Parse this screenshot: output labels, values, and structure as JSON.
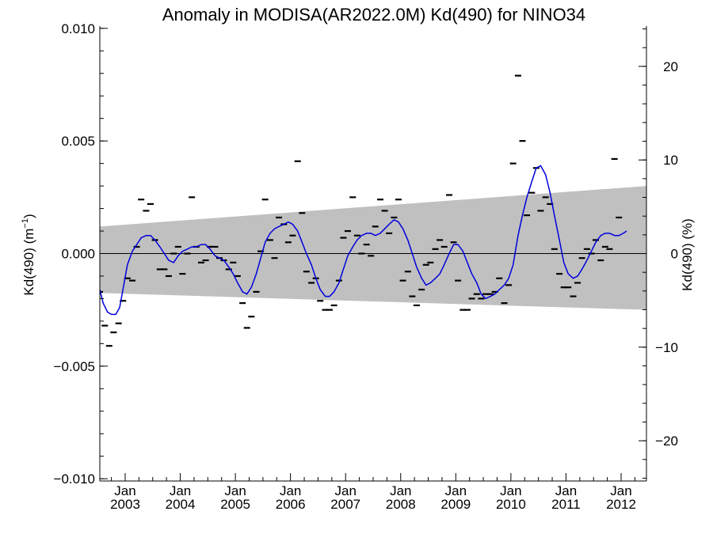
{
  "chart_data": {
    "type": "scatter",
    "title": "Anomaly in MODISA(AR2022.0M) Kd(490) for NINO34",
    "ylabel_left_main": "Kd(490) (m",
    "ylabel_left_sup": "−1",
    "ylabel_left_close": ")",
    "ylabel_right": "Kd(490) (%)",
    "ylim_left": [
      -0.0101,
      0.0101
    ],
    "ylim_right": [
      -24.3,
      24.3
    ],
    "xlim": [
      2002.54,
      2012.46
    ],
    "left_ticks": [
      {
        "value": 0.01,
        "label": "0.010"
      },
      {
        "value": 0.005,
        "label": "0.005"
      },
      {
        "value": 0.0,
        "label": "0.000"
      },
      {
        "value": -0.005,
        "label": "−0.005"
      },
      {
        "value": -0.01,
        "label": "−0.010"
      }
    ],
    "right_ticks": [
      {
        "value": 20,
        "label": "20"
      },
      {
        "value": 10,
        "label": "10"
      },
      {
        "value": 0,
        "label": "0"
      },
      {
        "value": -10,
        "label": "−10"
      },
      {
        "value": -20,
        "label": "−20"
      }
    ],
    "x_ticks": [
      {
        "value": 2003,
        "month": "Jan",
        "year": "2003"
      },
      {
        "value": 2004,
        "month": "Jan",
        "year": "2004"
      },
      {
        "value": 2005,
        "month": "Jan",
        "year": "2005"
      },
      {
        "value": 2006,
        "month": "Jan",
        "year": "2006"
      },
      {
        "value": 2007,
        "month": "Jan",
        "year": "2007"
      },
      {
        "value": 2008,
        "month": "Jan",
        "year": "2008"
      },
      {
        "value": 2009,
        "month": "Jan",
        "year": "2009"
      },
      {
        "value": 2010,
        "month": "Jan",
        "year": "2010"
      },
      {
        "value": 2011,
        "month": "Jan",
        "year": "2011"
      },
      {
        "value": 2012,
        "month": "Jan",
        "year": "2012"
      }
    ],
    "uncertainty_band": {
      "upper": [
        [
          2002.54,
          0.0012
        ],
        [
          2012.46,
          0.003
        ]
      ],
      "lower": [
        [
          2002.54,
          -0.00175
        ],
        [
          2012.46,
          -0.0025
        ]
      ]
    },
    "zero_line": 0,
    "monthly_anomalies": [
      [
        2002.54,
        -0.0017
      ],
      [
        2002.63,
        -0.0032
      ],
      [
        2002.71,
        -0.0041
      ],
      [
        2002.79,
        -0.0035
      ],
      [
        2002.88,
        -0.0031
      ],
      [
        2002.96,
        -0.0021
      ],
      [
        2003.04,
        -0.0011
      ],
      [
        2003.13,
        -0.0012
      ],
      [
        2003.21,
        0.0003
      ],
      [
        2003.29,
        0.0024
      ],
      [
        2003.38,
        0.0019
      ],
      [
        2003.46,
        0.0022
      ],
      [
        2003.54,
        0.0006
      ],
      [
        2003.63,
        -0.0007
      ],
      [
        2003.71,
        -0.0007
      ],
      [
        2003.79,
        -0.001
      ],
      [
        2003.88,
        0.0
      ],
      [
        2003.96,
        0.0003
      ],
      [
        2004.04,
        -0.0009
      ],
      [
        2004.13,
        0.0
      ],
      [
        2004.21,
        0.0025
      ],
      [
        2004.29,
        0.0003
      ],
      [
        2004.38,
        -0.0004
      ],
      [
        2004.46,
        -0.0003
      ],
      [
        2004.54,
        0.0003
      ],
      [
        2004.63,
        0.0003
      ],
      [
        2004.71,
        -0.0002
      ],
      [
        2004.79,
        -0.0003
      ],
      [
        2004.88,
        -0.0007
      ],
      [
        2004.96,
        -0.0004
      ],
      [
        2005.04,
        -0.001
      ],
      [
        2005.13,
        -0.0022
      ],
      [
        2005.21,
        -0.0033
      ],
      [
        2005.29,
        -0.0028
      ],
      [
        2005.38,
        -0.0017
      ],
      [
        2005.46,
        0.0001
      ],
      [
        2005.54,
        0.0024
      ],
      [
        2005.63,
        0.0006
      ],
      [
        2005.71,
        -0.0002
      ],
      [
        2005.79,
        0.0016
      ],
      [
        2005.88,
        0.0013
      ],
      [
        2005.96,
        0.0005
      ],
      [
        2006.04,
        0.0008
      ],
      [
        2006.13,
        0.0041
      ],
      [
        2006.21,
        0.0018
      ],
      [
        2006.29,
        -0.0008
      ],
      [
        2006.38,
        -0.0013
      ],
      [
        2006.46,
        -0.0011
      ],
      [
        2006.54,
        -0.0021
      ],
      [
        2006.63,
        -0.0025
      ],
      [
        2006.71,
        -0.0025
      ],
      [
        2006.79,
        -0.0023
      ],
      [
        2006.88,
        -0.0012
      ],
      [
        2006.96,
        0.0007
      ],
      [
        2007.04,
        0.001
      ],
      [
        2007.13,
        0.0025
      ],
      [
        2007.21,
        0.0008
      ],
      [
        2007.29,
        0.0
      ],
      [
        2007.38,
        0.0004
      ],
      [
        2007.46,
        -0.0001
      ],
      [
        2007.54,
        0.0012
      ],
      [
        2007.63,
        0.0024
      ],
      [
        2007.71,
        0.0019
      ],
      [
        2007.79,
        0.0009
      ],
      [
        2007.88,
        0.0016
      ],
      [
        2007.96,
        0.0024
      ],
      [
        2008.04,
        -0.0012
      ],
      [
        2008.13,
        -0.0008
      ],
      [
        2008.21,
        -0.0019
      ],
      [
        2008.29,
        -0.0023
      ],
      [
        2008.38,
        -0.0016
      ],
      [
        2008.46,
        -0.0005
      ],
      [
        2008.54,
        -0.0004
      ],
      [
        2008.63,
        0.0002
      ],
      [
        2008.71,
        0.0006
      ],
      [
        2008.79,
        0.0003
      ],
      [
        2008.88,
        0.0026
      ],
      [
        2008.96,
        0.0005
      ],
      [
        2009.04,
        -0.0012
      ],
      [
        2009.13,
        -0.0025
      ],
      [
        2009.21,
        -0.0025
      ],
      [
        2009.29,
        -0.002
      ],
      [
        2009.38,
        -0.0018
      ],
      [
        2009.46,
        -0.002
      ],
      [
        2009.54,
        -0.0018
      ],
      [
        2009.63,
        -0.0018
      ],
      [
        2009.71,
        -0.0017
      ],
      [
        2009.79,
        -0.0011
      ],
      [
        2009.88,
        -0.0022
      ],
      [
        2009.96,
        -0.0014
      ],
      [
        2010.04,
        0.004
      ],
      [
        2010.13,
        0.0079
      ],
      [
        2010.21,
        0.005
      ],
      [
        2010.29,
        0.0017
      ],
      [
        2010.38,
        0.0027
      ],
      [
        2010.46,
        0.0038
      ],
      [
        2010.54,
        0.0019
      ],
      [
        2010.63,
        0.0025
      ],
      [
        2010.71,
        0.0022
      ],
      [
        2010.79,
        0.0002
      ],
      [
        2010.88,
        -0.0009
      ],
      [
        2010.96,
        -0.0015
      ],
      [
        2011.04,
        -0.0015
      ],
      [
        2011.13,
        -0.0019
      ],
      [
        2011.21,
        -0.0013
      ],
      [
        2011.29,
        -0.0002
      ],
      [
        2011.38,
        0.0002
      ],
      [
        2011.46,
        0.0
      ],
      [
        2011.54,
        0.0006
      ],
      [
        2011.63,
        -0.0003
      ],
      [
        2011.71,
        0.0003
      ],
      [
        2011.79,
        0.0002
      ],
      [
        2011.88,
        0.0042
      ],
      [
        2011.96,
        0.0016
      ]
    ],
    "smoothed_anomaly": [
      [
        2002.54,
        -0.0016
      ],
      [
        2002.6,
        -0.0022
      ],
      [
        2002.68,
        -0.0026
      ],
      [
        2002.75,
        -0.0027
      ],
      [
        2002.83,
        -0.0027
      ],
      [
        2002.9,
        -0.0024
      ],
      [
        2002.96,
        -0.0016
      ],
      [
        2003.04,
        -0.0005
      ],
      [
        2003.13,
        0.0001
      ],
      [
        2003.21,
        0.0004
      ],
      [
        2003.29,
        0.0007
      ],
      [
        2003.38,
        0.0008
      ],
      [
        2003.46,
        0.0008
      ],
      [
        2003.54,
        0.0006
      ],
      [
        2003.63,
        0.0003
      ],
      [
        2003.71,
        0.0
      ],
      [
        2003.79,
        -0.0003
      ],
      [
        2003.88,
        -0.0004
      ],
      [
        2003.96,
        -0.0001
      ],
      [
        2004.04,
        0.0001
      ],
      [
        2004.13,
        0.0002
      ],
      [
        2004.21,
        0.0003
      ],
      [
        2004.29,
        0.0003
      ],
      [
        2004.38,
        0.0004
      ],
      [
        2004.46,
        0.0004
      ],
      [
        2004.54,
        0.0002
      ],
      [
        2004.63,
        -0.0001
      ],
      [
        2004.71,
        -0.0002
      ],
      [
        2004.79,
        -0.0003
      ],
      [
        2004.88,
        -0.0006
      ],
      [
        2004.96,
        -0.0009
      ],
      [
        2005.04,
        -0.0013
      ],
      [
        2005.13,
        -0.0017
      ],
      [
        2005.21,
        -0.0018
      ],
      [
        2005.29,
        -0.0015
      ],
      [
        2005.38,
        -0.0009
      ],
      [
        2005.46,
        -0.0002
      ],
      [
        2005.54,
        0.0005
      ],
      [
        2005.63,
        0.0009
      ],
      [
        2005.71,
        0.0011
      ],
      [
        2005.79,
        0.0012
      ],
      [
        2005.88,
        0.0013
      ],
      [
        2005.96,
        0.0014
      ],
      [
        2006.04,
        0.0013
      ],
      [
        2006.13,
        0.001
      ],
      [
        2006.21,
        0.0005
      ],
      [
        2006.29,
        0.0
      ],
      [
        2006.38,
        -0.0005
      ],
      [
        2006.46,
        -0.0011
      ],
      [
        2006.54,
        -0.0016
      ],
      [
        2006.63,
        -0.0019
      ],
      [
        2006.71,
        -0.0019
      ],
      [
        2006.79,
        -0.0017
      ],
      [
        2006.88,
        -0.0013
      ],
      [
        2006.96,
        -0.0007
      ],
      [
        2007.04,
        -0.0001
      ],
      [
        2007.13,
        0.0003
      ],
      [
        2007.21,
        0.0006
      ],
      [
        2007.29,
        0.0008
      ],
      [
        2007.38,
        0.0009
      ],
      [
        2007.46,
        0.0009
      ],
      [
        2007.54,
        0.0008
      ],
      [
        2007.63,
        0.0009
      ],
      [
        2007.71,
        0.0011
      ],
      [
        2007.79,
        0.0013
      ],
      [
        2007.88,
        0.0015
      ],
      [
        2007.96,
        0.0014
      ],
      [
        2008.04,
        0.0011
      ],
      [
        2008.13,
        0.0006
      ],
      [
        2008.21,
        0.0
      ],
      [
        2008.29,
        -0.0006
      ],
      [
        2008.38,
        -0.0011
      ],
      [
        2008.46,
        -0.0014
      ],
      [
        2008.54,
        -0.0013
      ],
      [
        2008.63,
        -0.0011
      ],
      [
        2008.71,
        -0.0009
      ],
      [
        2008.79,
        -0.0005
      ],
      [
        2008.88,
        0.0
      ],
      [
        2008.96,
        0.0004
      ],
      [
        2009.04,
        0.0004
      ],
      [
        2009.13,
        0.0001
      ],
      [
        2009.21,
        -0.0004
      ],
      [
        2009.29,
        -0.0009
      ],
      [
        2009.38,
        -0.0013
      ],
      [
        2009.46,
        -0.0018
      ],
      [
        2009.54,
        -0.002
      ],
      [
        2009.63,
        -0.0019
      ],
      [
        2009.71,
        -0.0018
      ],
      [
        2009.79,
        -0.0016
      ],
      [
        2009.88,
        -0.0014
      ],
      [
        2009.96,
        -0.0011
      ],
      [
        2010.04,
        -0.0005
      ],
      [
        2010.13,
        0.0008
      ],
      [
        2010.21,
        0.0017
      ],
      [
        2010.29,
        0.0025
      ],
      [
        2010.38,
        0.0032
      ],
      [
        2010.46,
        0.0038
      ],
      [
        2010.54,
        0.0039
      ],
      [
        2010.63,
        0.0035
      ],
      [
        2010.71,
        0.0027
      ],
      [
        2010.79,
        0.0017
      ],
      [
        2010.88,
        0.0006
      ],
      [
        2010.96,
        -0.0004
      ],
      [
        2011.04,
        -0.0009
      ],
      [
        2011.13,
        -0.0011
      ],
      [
        2011.21,
        -0.001
      ],
      [
        2011.29,
        -0.0007
      ],
      [
        2011.38,
        -0.0003
      ],
      [
        2011.46,
        0.0001
      ],
      [
        2011.54,
        0.0005
      ],
      [
        2011.63,
        0.0008
      ],
      [
        2011.71,
        0.0009
      ],
      [
        2011.79,
        0.0009
      ],
      [
        2011.88,
        0.0008
      ],
      [
        2011.96,
        0.0008
      ],
      [
        2012.04,
        0.0009
      ],
      [
        2012.1,
        0.001
      ]
    ],
    "colors": {
      "smoothed_line": "#0000dd",
      "band_fill": "#c0c0c0",
      "points": "#000000",
      "axes": "#000000"
    },
    "grid": false,
    "legend": "none"
  }
}
